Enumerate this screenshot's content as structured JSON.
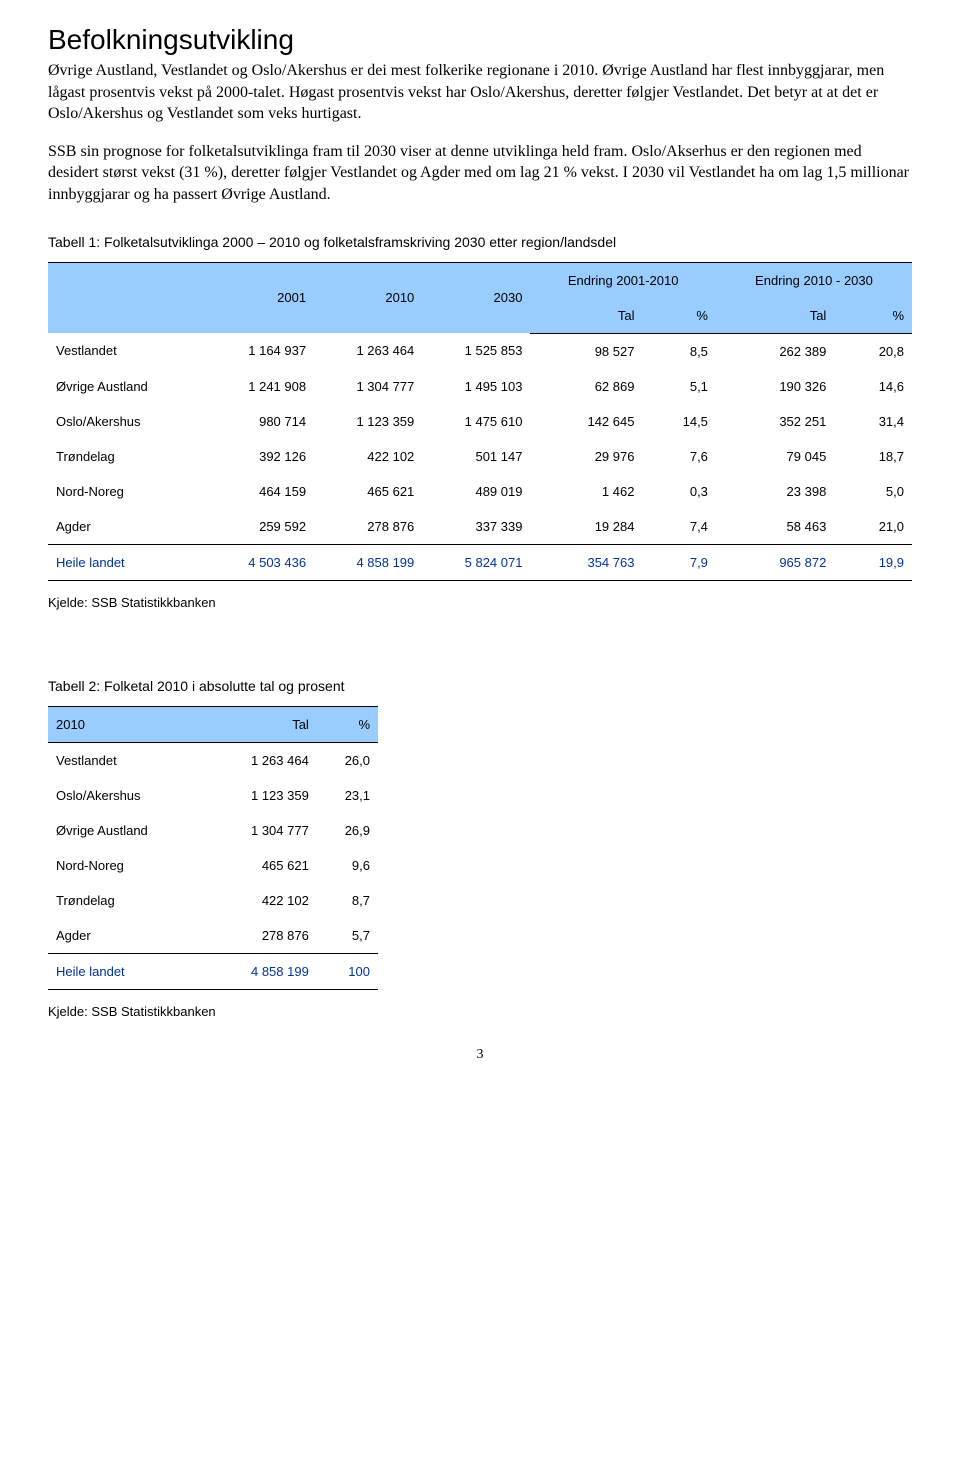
{
  "heading": "Befolkningsutvikling",
  "para1": "Øvrige Austland, Vestlandet og Oslo/Akershus er dei mest folkerike regionane i 2010. Øvrige Austland har flest innbyggjarar, men lågast prosentvis vekst på 2000-talet. Høgast prosentvis vekst har Oslo/Akershus, deretter følgjer Vestlandet. Det betyr at at det er Oslo/Akershus og Vestlandet som veks hurtigast.",
  "para2": "SSB sin prognose for folketalsutviklinga fram til 2030 viser at denne utviklinga held fram. Oslo/Akserhus er den regionen med desidert størst vekst (31 %), deretter følgjer Vestlandet og Agder med om lag 21 % vekst. I 2030 vil Vestlandet ha om lag 1,5 millionar innbyggjarar og ha passert Øvrige Austland.",
  "table1": {
    "title": "Tabell 1: Folketalsutviklinga 2000 – 2010 og folketalsframskriving 2030 etter region/landsdel",
    "header_years": [
      "2001",
      "2010",
      "2030"
    ],
    "header_group1": "Endring 2001-2010",
    "header_group2": "Endring 2010 - 2030",
    "sub_tal": "Tal",
    "sub_pct": "%",
    "rows": [
      {
        "label": "Vestlandet",
        "v2001": "1 164 937",
        "v2010": "1 263 464",
        "v2030": "1 525 853",
        "d1_tal": "98 527",
        "d1_pct": "8,5",
        "d2_tal": "262 389",
        "d2_pct": "20,8"
      },
      {
        "label": "Øvrige Austland",
        "v2001": "1 241 908",
        "v2010": "1 304 777",
        "v2030": "1 495 103",
        "d1_tal": "62 869",
        "d1_pct": "5,1",
        "d2_tal": "190 326",
        "d2_pct": "14,6"
      },
      {
        "label": "Oslo/Akershus",
        "v2001": "980 714",
        "v2010": "1 123 359",
        "v2030": "1 475 610",
        "d1_tal": "142 645",
        "d1_pct": "14,5",
        "d2_tal": "352 251",
        "d2_pct": "31,4"
      },
      {
        "label": "Trøndelag",
        "v2001": "392 126",
        "v2010": "422 102",
        "v2030": "501 147",
        "d1_tal": "29 976",
        "d1_pct": "7,6",
        "d2_tal": "79 045",
        "d2_pct": "18,7"
      },
      {
        "label": "Nord-Noreg",
        "v2001": "464 159",
        "v2010": "465 621",
        "v2030": "489 019",
        "d1_tal": "1 462",
        "d1_pct": "0,3",
        "d2_tal": "23 398",
        "d2_pct": "5,0"
      },
      {
        "label": "Agder",
        "v2001": "259 592",
        "v2010": "278 876",
        "v2030": "337 339",
        "d1_tal": "19 284",
        "d1_pct": "7,4",
        "d2_tal": "58 463",
        "d2_pct": "21,0"
      }
    ],
    "total": {
      "label": "Heile landet",
      "v2001": "4 503 436",
      "v2010": "4 858 199",
      "v2030": "5 824 071",
      "d1_tal": "354 763",
      "d1_pct": "7,9",
      "d2_tal": "965 872",
      "d2_pct": "19,9"
    },
    "source": "Kjelde: SSB Statistikkbanken",
    "header_bg": "#99ccff",
    "total_color": "#003399"
  },
  "table2": {
    "title": "Tabell 2: Folketal 2010 i absolutte tal og prosent",
    "col_year": "2010",
    "col_tal": "Tal",
    "col_pct": "%",
    "rows": [
      {
        "label": "Vestlandet",
        "tal": "1 263 464",
        "pct": "26,0"
      },
      {
        "label": "Oslo/Akershus",
        "tal": "1 123 359",
        "pct": "23,1"
      },
      {
        "label": "Øvrige Austland",
        "tal": "1 304 777",
        "pct": "26,9"
      },
      {
        "label": "Nord-Noreg",
        "tal": "465 621",
        "pct": "9,6"
      },
      {
        "label": "Trøndelag",
        "tal": "422 102",
        "pct": "8,7"
      },
      {
        "label": "Agder",
        "tal": "278 876",
        "pct": "5,7"
      }
    ],
    "total": {
      "label": "Heile landet",
      "tal": "4 858 199",
      "pct": "100"
    },
    "source": "Kjelde: SSB Statistikkbanken"
  },
  "page_number": "3"
}
